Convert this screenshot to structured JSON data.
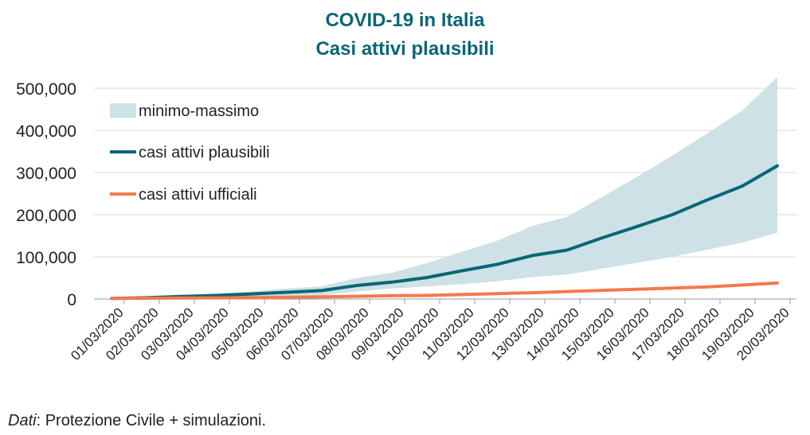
{
  "chart_data": {
    "type": "line",
    "title": "COVID-19 in Italia",
    "subtitle": "Casi attivi plausibili",
    "categories": [
      "01/03/2020",
      "02/03/2020",
      "03/03/2020",
      "04/03/2020",
      "05/03/2020",
      "06/03/2020",
      "07/03/2020",
      "08/03/2020",
      "09/03/2020",
      "10/03/2020",
      "11/03/2020",
      "12/03/2020",
      "13/03/2020",
      "14/03/2020",
      "15/03/2020",
      "16/03/2020",
      "17/03/2020",
      "18/03/2020",
      "19/03/2020",
      "20/03/2020"
    ],
    "ylim": [
      0,
      500000
    ],
    "yticks": [
      0,
      100000,
      200000,
      300000,
      400000,
      500000
    ],
    "ytick_labels": [
      "0",
      "100,000",
      "200,000",
      "300,000",
      "400,000",
      "500,000"
    ],
    "grid": true,
    "legend_position": "top-left",
    "series": [
      {
        "name": "minimo-massimo",
        "kind": "band",
        "color": "#cde1e6",
        "low": [
          1500,
          2000,
          2500,
          3000,
          4000,
          6000,
          9000,
          18000,
          25000,
          30000,
          35000,
          42000,
          52000,
          58000,
          72000,
          86000,
          100000,
          117000,
          134000,
          157000
        ],
        "high": [
          2000,
          5000,
          9000,
          13000,
          18000,
          25000,
          30000,
          50000,
          62000,
          85000,
          112000,
          138000,
          173000,
          195000,
          242000,
          290000,
          340000,
          393000,
          447000,
          527000
        ]
      },
      {
        "name": "casi attivi plausibili",
        "kind": "line",
        "color": "#0b6675",
        "values": [
          1577,
          3000,
          6000,
          8500,
          12000,
          16000,
          20000,
          32000,
          40000,
          51000,
          67000,
          82000,
          103000,
          116000,
          145000,
          172000,
          200000,
          235000,
          268000,
          316000
        ]
      },
      {
        "name": "casi attivi ufficiali",
        "kind": "line",
        "color": "#f4794b",
        "values": [
          1577,
          1835,
          2263,
          2706,
          3296,
          3916,
          5061,
          6387,
          7985,
          8514,
          10590,
          12839,
          14955,
          17750,
          20603,
          23073,
          26062,
          28710,
          33190,
          37860
        ]
      }
    ]
  },
  "footer": {
    "source_label": "Dati",
    "source_text": ": Protezione Civile + simulazioni."
  }
}
